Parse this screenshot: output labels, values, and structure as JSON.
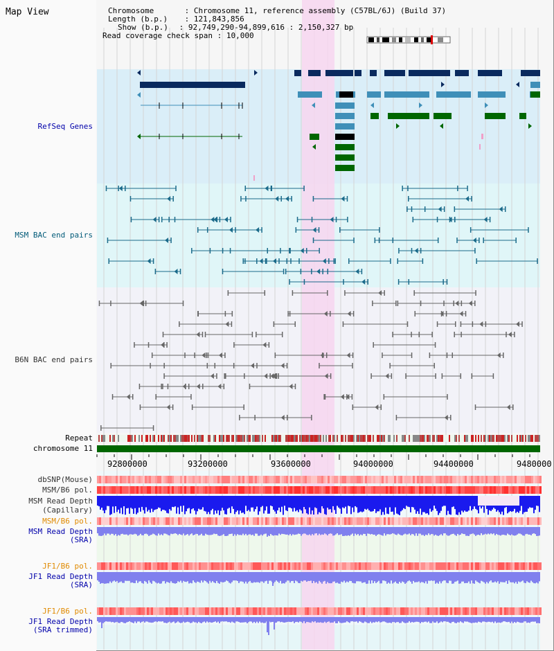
{
  "title": "Map View",
  "info": {
    "chromosome_key": "Chromosome",
    "chromosome_val": "Chromosome 11, reference assembly (C57BL/6J) (Build 37)",
    "length_key": "Length (b.p.)",
    "length_val": "121,843,856",
    "show_key": "Show (b.p.)",
    "show_val": "92,749,290-94,899,616 : 2,150,327 bp",
    "coverage_key": "Read coverage check span",
    "coverage_val": "10,000"
  },
  "tracks": {
    "refseq": "RefSeq Genes",
    "msm_bac": "MSM BAC end pairs",
    "b6n_bac": "B6N BAC end pairs",
    "repeat": "Repeat",
    "chromosome": "chromosome 11",
    "dbsnp": "dbSNP(Mouse)",
    "msm_b6_pol": "MSM/B6 pol.",
    "msm_depth_cap_1": "MSM Read Depth",
    "msm_depth_cap_2": "(Capillary)",
    "msm_b6_pol2": "MSM/B6 pol.",
    "msm_depth_sra_1": "MSM Read Depth",
    "msm_depth_sra_2": "(SRA)",
    "jf1_b6_pol": "JF1/B6 pol.",
    "jf1_depth_1": "JF1 Read Depth",
    "jf1_depth_2": "(SRA)",
    "jf1_b6_pol2": "JF1/B6 pol.",
    "jf1_trim_1": "JF1 Read Depth",
    "jf1_trim_2": "(SRA trimmed)"
  },
  "axis_ticks": [
    "92800000",
    "93200000",
    "93600000",
    "94000000",
    "94400000",
    "9480000"
  ],
  "colors": {
    "refseq_bg": "#daeef8",
    "msm_bg": "#e0f6f8",
    "b6n_bg": "#f2f2f8",
    "highlight": "#f7d6f0",
    "gene_dark": "#0a2a5e",
    "gene_mid": "#3f8fb8",
    "gene_green": "#006600",
    "bac_teal": "#1a6a8a",
    "bac_gray": "#666666",
    "chromosome_green": "#006600",
    "depth_blue": "#1a1aee",
    "depth_lavender": "#8080ee"
  }
}
